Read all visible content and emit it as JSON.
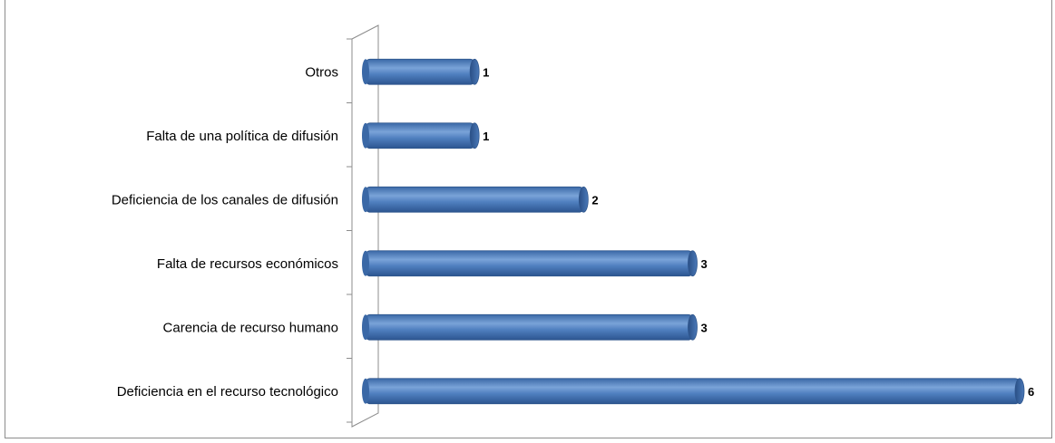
{
  "chart_data": {
    "type": "bar",
    "orientation": "horizontal",
    "title": "",
    "categories": [
      "Otros",
      "Falta de una política de difusión",
      "Deficiencia de los canales de difusión",
      "Falta de recursos económicos",
      "Carencia de recurso humano",
      "Deficiencia en el recurso tecnológico"
    ],
    "values": [
      1,
      1,
      2,
      3,
      3,
      6
    ],
    "data_labels": [
      "1",
      "1",
      "2",
      "3",
      "3",
      "6"
    ],
    "xlim": [
      0,
      6
    ],
    "grid": false,
    "legend": "none",
    "bar_color": "#4f7fbf",
    "bar_edge_color": "#2e558c"
  }
}
